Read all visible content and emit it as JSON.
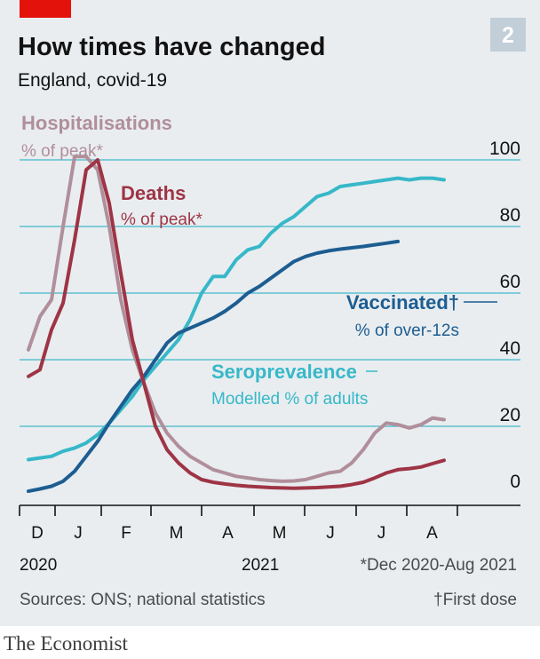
{
  "chart_data": {
    "type": "line",
    "title": "How times have changed",
    "subtitle": "England, covid-19",
    "chart_number": "2",
    "x_unit": "week",
    "x_labels": [
      "D",
      "J",
      "F",
      "M",
      "A",
      "M",
      "J",
      "J",
      "A"
    ],
    "year_labels": [
      "2020",
      "2021"
    ],
    "x_range": [
      "2020-12",
      "2021-08"
    ],
    "ylim": [
      0,
      100
    ],
    "yticks": [
      0,
      20,
      40,
      60,
      80,
      100
    ],
    "y_axis_position": "right",
    "grid": "horizontal",
    "series": [
      {
        "name": "Hospitalisations",
        "sublabel": "% of peak*",
        "color": "#b08f9a",
        "points": [
          [
            0,
            43
          ],
          [
            1,
            53
          ],
          [
            2,
            58
          ],
          [
            3,
            80
          ],
          [
            4,
            101
          ],
          [
            5,
            101
          ],
          [
            6,
            97
          ],
          [
            7,
            80
          ],
          [
            8,
            58
          ],
          [
            9,
            43
          ],
          [
            10,
            33
          ],
          [
            11,
            24
          ],
          [
            12,
            18
          ],
          [
            13,
            14
          ],
          [
            14,
            11
          ],
          [
            15,
            9
          ],
          [
            16,
            7
          ],
          [
            17,
            6
          ],
          [
            18,
            5
          ],
          [
            19,
            4.5
          ],
          [
            20,
            4
          ],
          [
            21,
            3.7
          ],
          [
            22,
            3.5
          ],
          [
            23,
            3.6
          ],
          [
            24,
            4
          ],
          [
            25,
            5
          ],
          [
            26,
            6
          ],
          [
            27,
            6.5
          ],
          [
            28,
            9
          ],
          [
            29,
            13
          ],
          [
            30,
            18
          ],
          [
            31,
            21
          ],
          [
            32,
            20.5
          ],
          [
            33,
            19.5
          ],
          [
            34,
            20.5
          ],
          [
            35,
            22.5
          ],
          [
            36,
            22
          ]
        ]
      },
      {
        "name": "Deaths",
        "sublabel": "% of peak*",
        "color": "#9e3445",
        "points": [
          [
            0,
            35
          ],
          [
            1,
            37
          ],
          [
            2,
            49
          ],
          [
            3,
            57
          ],
          [
            4,
            76
          ],
          [
            5,
            97
          ],
          [
            6,
            100
          ],
          [
            7,
            87
          ],
          [
            8,
            66
          ],
          [
            9,
            46
          ],
          [
            10,
            33
          ],
          [
            11,
            20
          ],
          [
            12,
            13
          ],
          [
            13,
            9
          ],
          [
            14,
            6
          ],
          [
            15,
            4
          ],
          [
            16,
            3.2
          ],
          [
            17,
            2.7
          ],
          [
            18,
            2.3
          ],
          [
            19,
            2
          ],
          [
            20,
            1.8
          ],
          [
            21,
            1.6
          ],
          [
            22,
            1.5
          ],
          [
            23,
            1.4
          ],
          [
            24,
            1.5
          ],
          [
            25,
            1.6
          ],
          [
            26,
            1.8
          ],
          [
            27,
            2
          ],
          [
            28,
            2.5
          ],
          [
            29,
            3.2
          ],
          [
            30,
            4.5
          ],
          [
            31,
            6
          ],
          [
            32,
            7
          ],
          [
            33,
            7.3
          ],
          [
            34,
            7.8
          ],
          [
            35,
            8.8
          ],
          [
            36,
            9.8
          ]
        ]
      },
      {
        "name": "Vaccinated†",
        "sublabel": "% of over-12s",
        "color": "#1d5d91",
        "points": [
          [
            0,
            0.5
          ],
          [
            1,
            1.2
          ],
          [
            2,
            2
          ],
          [
            3,
            3.5
          ],
          [
            4,
            6.5
          ],
          [
            5,
            11
          ],
          [
            6,
            15.5
          ],
          [
            7,
            21
          ],
          [
            8,
            26
          ],
          [
            9,
            31
          ],
          [
            10,
            35
          ],
          [
            11,
            40
          ],
          [
            12,
            45
          ],
          [
            13,
            48
          ],
          [
            14,
            49.5
          ],
          [
            15,
            51
          ],
          [
            16,
            52.5
          ],
          [
            17,
            54.5
          ],
          [
            18,
            57
          ],
          [
            19,
            60
          ],
          [
            20,
            62
          ],
          [
            21,
            64.5
          ],
          [
            22,
            67
          ],
          [
            23,
            69.5
          ],
          [
            24,
            71
          ],
          [
            25,
            72
          ],
          [
            26,
            72.7
          ],
          [
            27,
            73.2
          ],
          [
            28,
            73.6
          ],
          [
            29,
            74
          ],
          [
            30,
            74.5
          ],
          [
            31,
            75
          ],
          [
            32,
            75.5
          ]
        ]
      },
      {
        "name": "Seroprevalence",
        "sublabel": "Modelled % of adults",
        "color": "#37b8c8",
        "points": [
          [
            0,
            10
          ],
          [
            1,
            10.5
          ],
          [
            2,
            11
          ],
          [
            3,
            12.5
          ],
          [
            4,
            13.5
          ],
          [
            5,
            15
          ],
          [
            6,
            17.5
          ],
          [
            7,
            21
          ],
          [
            8,
            25
          ],
          [
            9,
            29
          ],
          [
            10,
            34
          ],
          [
            11,
            38
          ],
          [
            12,
            42
          ],
          [
            13,
            46
          ],
          [
            14,
            52
          ],
          [
            15,
            60
          ],
          [
            16,
            65
          ],
          [
            17,
            65
          ],
          [
            18,
            70
          ],
          [
            19,
            73
          ],
          [
            20,
            74
          ],
          [
            21,
            78
          ],
          [
            22,
            81
          ],
          [
            23,
            83
          ],
          [
            24,
            86
          ],
          [
            25,
            89
          ],
          [
            26,
            90
          ],
          [
            27,
            92
          ],
          [
            28,
            92.5
          ],
          [
            29,
            93
          ],
          [
            30,
            93.5
          ],
          [
            31,
            94
          ],
          [
            32,
            94.5
          ],
          [
            33,
            94
          ],
          [
            34,
            94.5
          ],
          [
            35,
            94.5
          ],
          [
            36,
            94
          ]
        ]
      }
    ],
    "footnotes": {
      "dates": "*Dec 2020-Aug 2021",
      "first_dose": "†First dose"
    },
    "source": "Sources: ONS; national statistics"
  },
  "brand": {
    "name": "The Economist",
    "colors": {
      "red": "#e3120b",
      "panel": "#e9edf0",
      "grid": "#40b8c8",
      "text": "#121212"
    }
  }
}
